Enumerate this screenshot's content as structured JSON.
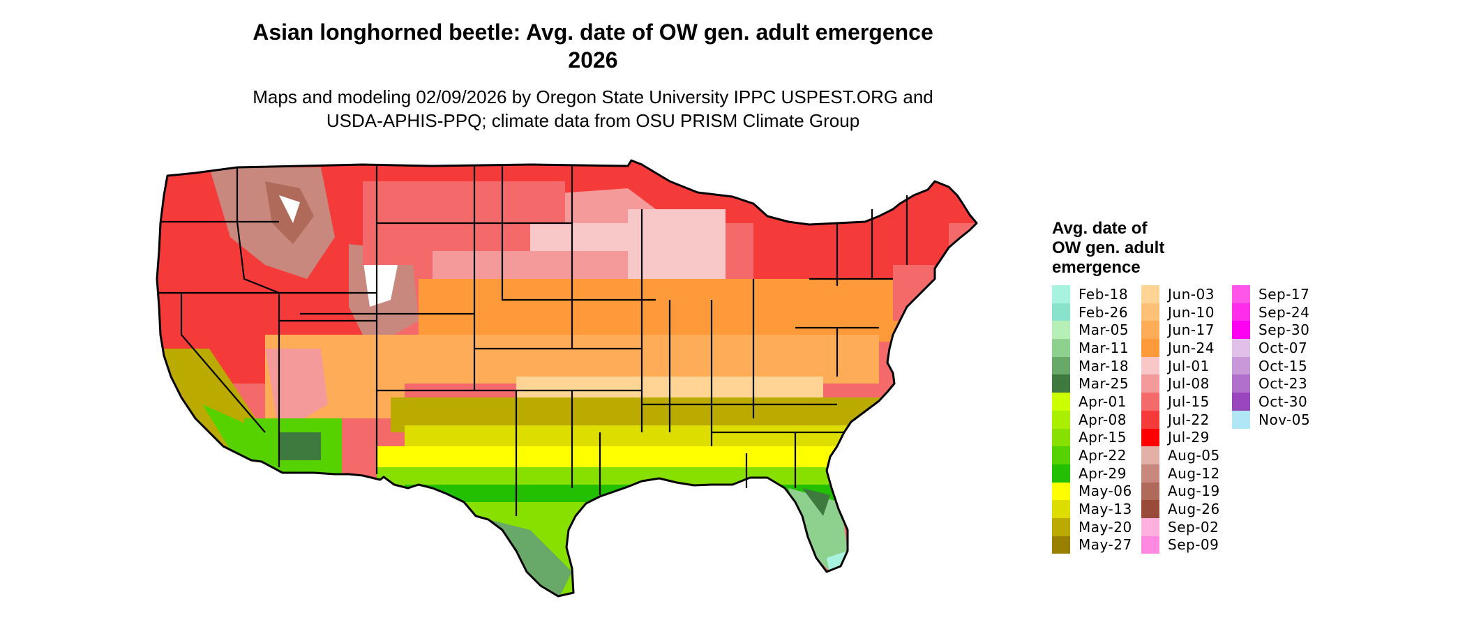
{
  "map": {
    "title_line1": "Asian longhorned beetle: Avg. date of OW gen. adult emergence",
    "title_line2": "2026",
    "subtitle_line1": "Maps and modeling 02/09/2026 by Oregon State University IPPC USPEST.ORG and",
    "subtitle_line2": "USDA-APHIS-PPQ; climate data from OSU PRISM Climate Group"
  },
  "legend": {
    "title_lines": [
      "Avg. date of",
      "OW gen. adult",
      "emergence"
    ],
    "columns": [
      [
        {
          "label": "Feb-18",
          "color": "#a8f2e0"
        },
        {
          "label": "Feb-26",
          "color": "#88e2cc"
        },
        {
          "label": "Mar-05",
          "color": "#b6f0b6"
        },
        {
          "label": "Mar-11",
          "color": "#8ed08e"
        },
        {
          "label": "Mar-18",
          "color": "#68a868"
        },
        {
          "label": "Mar-25",
          "color": "#3e7a3e"
        },
        {
          "label": "Apr-01",
          "color": "#ccff00"
        },
        {
          "label": "Apr-08",
          "color": "#aaee00"
        },
        {
          "label": "Apr-15",
          "color": "#88e000"
        },
        {
          "label": "Apr-22",
          "color": "#55d200"
        },
        {
          "label": "Apr-29",
          "color": "#22c000"
        },
        {
          "label": "May-06",
          "color": "#ffff00"
        },
        {
          "label": "May-13",
          "color": "#dddd00"
        },
        {
          "label": "May-20",
          "color": "#bbaa00"
        },
        {
          "label": "May-27",
          "color": "#998000"
        }
      ],
      [
        {
          "label": "Jun-03",
          "color": "#ffd494"
        },
        {
          "label": "Jun-10",
          "color": "#ffc078"
        },
        {
          "label": "Jun-17",
          "color": "#ffac58"
        },
        {
          "label": "Jun-24",
          "color": "#ff9a3a"
        },
        {
          "label": "Jul-01",
          "color": "#f8c8c8"
        },
        {
          "label": "Jul-08",
          "color": "#f49a9a"
        },
        {
          "label": "Jul-15",
          "color": "#f46a6a"
        },
        {
          "label": "Jul-22",
          "color": "#f53a3a"
        },
        {
          "label": "Jul-29",
          "color": "#ff0000"
        },
        {
          "label": "Aug-05",
          "color": "#e3b0a8"
        },
        {
          "label": "Aug-12",
          "color": "#c8887e"
        },
        {
          "label": "Aug-19",
          "color": "#b06a5a"
        },
        {
          "label": "Aug-26",
          "color": "#9a4a38"
        },
        {
          "label": "Sep-02",
          "color": "#ffb0dc"
        },
        {
          "label": "Sep-09",
          "color": "#ff88e0"
        }
      ],
      [
        {
          "label": "Sep-17",
          "color": "#ff55e8"
        },
        {
          "label": "Sep-24",
          "color": "#ff2cec"
        },
        {
          "label": "Sep-30",
          "color": "#ff00f2"
        },
        {
          "label": "Oct-07",
          "color": "#e0c0e8"
        },
        {
          "label": "Oct-15",
          "color": "#c898d8"
        },
        {
          "label": "Oct-23",
          "color": "#b070cc"
        },
        {
          "label": "Oct-30",
          "color": "#9848bc"
        },
        {
          "label": "Nov-05",
          "color": "#b0e6f6"
        }
      ]
    ]
  }
}
